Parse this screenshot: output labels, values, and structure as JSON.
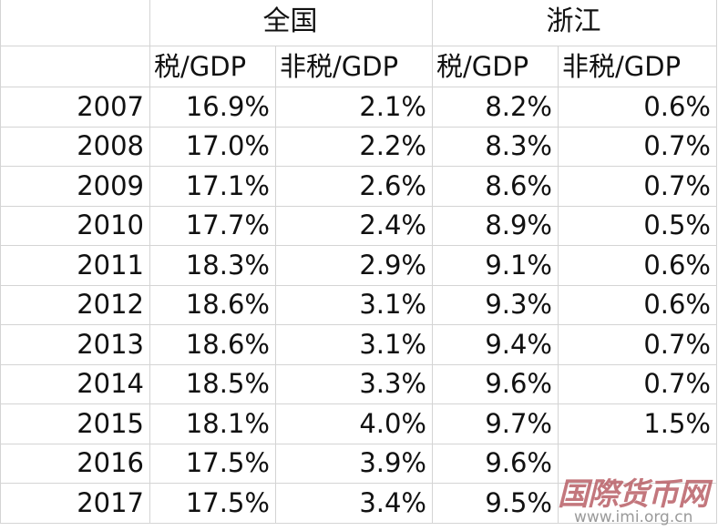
{
  "header": {
    "group_blank": "",
    "group_national": "全国",
    "group_zhejiang": "浙江",
    "sub_blank": "",
    "sub_cols": [
      "税/GDP",
      "非税/GDP",
      "税/GDP",
      "非税/GDP"
    ]
  },
  "rows": [
    {
      "year": "2007",
      "values": [
        "16.9%",
        "2.1%",
        "8.2%",
        "0.6%"
      ]
    },
    {
      "year": "2008",
      "values": [
        "17.0%",
        "2.2%",
        "8.3%",
        "0.7%"
      ]
    },
    {
      "year": "2009",
      "values": [
        "17.1%",
        "2.6%",
        "8.6%",
        "0.7%"
      ]
    },
    {
      "year": "2010",
      "values": [
        "17.7%",
        "2.4%",
        "8.9%",
        "0.5%"
      ]
    },
    {
      "year": "2011",
      "values": [
        "18.3%",
        "2.9%",
        "9.1%",
        "0.6%"
      ]
    },
    {
      "year": "2012",
      "values": [
        "18.6%",
        "3.1%",
        "9.3%",
        "0.6%"
      ]
    },
    {
      "year": "2013",
      "values": [
        "18.6%",
        "3.1%",
        "9.4%",
        "0.7%"
      ]
    },
    {
      "year": "2014",
      "values": [
        "18.5%",
        "3.3%",
        "9.6%",
        "0.7%"
      ]
    },
    {
      "year": "2015",
      "values": [
        "18.1%",
        "4.0%",
        "9.7%",
        "1.5%"
      ]
    },
    {
      "year": "2016",
      "values": [
        "17.5%",
        "3.9%",
        "9.6%",
        ""
      ]
    },
    {
      "year": "2017",
      "values": [
        "17.5%",
        "3.4%",
        "9.5%",
        ""
      ]
    }
  ],
  "watermark": {
    "logo_text": "国际货币网",
    "url": "www.imi.org.cn"
  }
}
